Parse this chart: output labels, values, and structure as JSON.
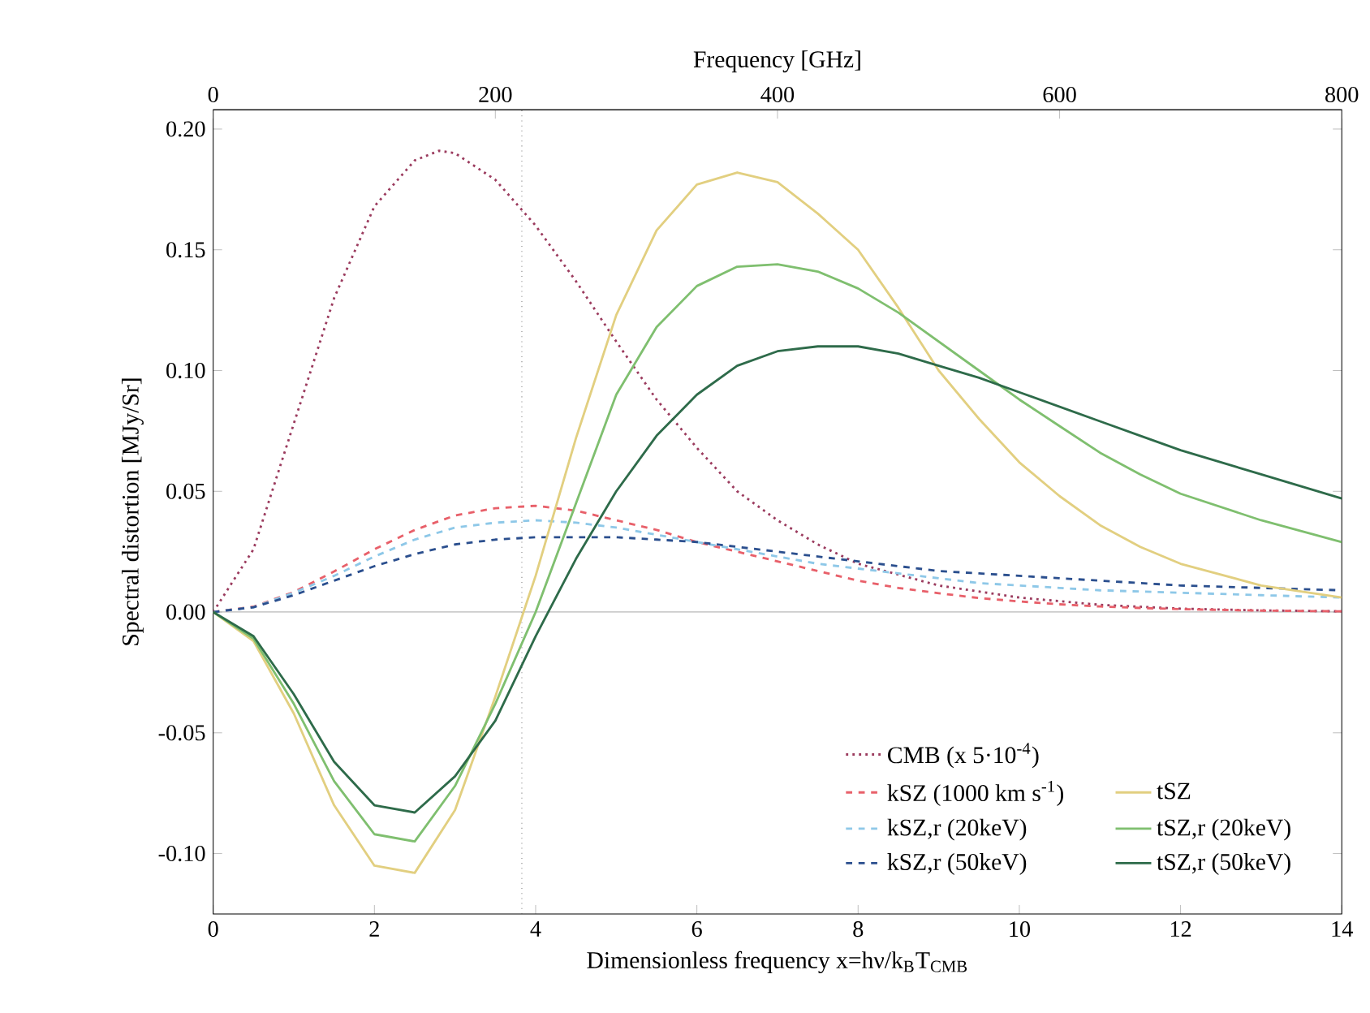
{
  "chart_data": {
    "type": "line",
    "xlabel": "Dimensionless frequency x=hν/k$_{B}$T$_{CMB}$",
    "ylabel": "Spectral distortion [MJy/Sr]",
    "x2label": "Frequency [GHz]",
    "xlim": [
      0,
      14
    ],
    "xticks": [
      0,
      2,
      4,
      6,
      8,
      10,
      12,
      14
    ],
    "x2lim": [
      0,
      800
    ],
    "x2ticks": [
      0,
      200,
      400,
      600,
      800
    ],
    "ylim": [
      -0.125,
      0.208
    ],
    "yticks": [
      {
        "value": -0.1,
        "label": "-0.10"
      },
      {
        "value": -0.05,
        "label": "-0.05"
      },
      {
        "value": 0,
        "label": "0.00"
      },
      {
        "value": 0.05,
        "label": "0.05"
      },
      {
        "value": 0.1,
        "label": "0.10"
      },
      {
        "value": 0.15,
        "label": "0.15"
      },
      {
        "value": 0.2,
        "label": "0.20"
      }
    ],
    "legend": "bottom right",
    "marker": "none",
    "grid": false,
    "ref_lines": [
      {
        "axis": "x",
        "value": 3.83,
        "color": "#555555",
        "line_style": "dotted"
      },
      {
        "axis": "y",
        "value": 0,
        "color": "#9a9a9a",
        "line_style": "solid"
      }
    ],
    "x": [
      0,
      0.5,
      1,
      1.5,
      2,
      2.5,
      3,
      3.5,
      4,
      4.5,
      5,
      5.5,
      6,
      6.5,
      7,
      7.5,
      8,
      8.5,
      9,
      9.5,
      10,
      10.5,
      11,
      11.5,
      12,
      13,
      14
    ],
    "series": [
      {
        "name": "CMB (x 5·10$^{-4}$)",
        "color": "#9b3b5e",
        "line_style": "dotted",
        "x": [
          0,
          0.5,
          1,
          1.5,
          2,
          2.5,
          2.8,
          3,
          3.5,
          4,
          4.5,
          5,
          5.5,
          6,
          6.5,
          7,
          7.5,
          8,
          9,
          10,
          11,
          12,
          13,
          14
        ],
        "values": [
          0,
          0.026,
          0.078,
          0.13,
          0.168,
          0.187,
          0.191,
          0.19,
          0.179,
          0.16,
          0.137,
          0.112,
          0.088,
          0.068,
          0.05,
          0.038,
          0.028,
          0.02,
          0.011,
          0.006,
          0.003,
          0.0014,
          0.0007,
          0.0003
        ]
      },
      {
        "name": "kSZ   (1000 km s$^{-1}$)",
        "color": "#e8606a",
        "line_style": "dashed",
        "values": [
          0,
          0.0022,
          0.0083,
          0.0168,
          0.026,
          0.034,
          0.04,
          0.043,
          0.044,
          0.042,
          0.038,
          0.034,
          0.029,
          0.025,
          0.021,
          0.017,
          0.013,
          0.01,
          0.0078,
          0.0058,
          0.0044,
          0.0032,
          0.0023,
          0.0017,
          0.0012,
          0.0006,
          0.0003
        ]
      },
      {
        "name": "kSZ,r (20keV)",
        "color": "#8ec8e8",
        "line_style": "dashed",
        "values": [
          0,
          0.002,
          0.008,
          0.015,
          0.023,
          0.03,
          0.035,
          0.037,
          0.038,
          0.037,
          0.035,
          0.032,
          0.029,
          0.026,
          0.023,
          0.02,
          0.018,
          0.016,
          0.014,
          0.012,
          0.011,
          0.01,
          0.009,
          0.0085,
          0.008,
          0.007,
          0.006
        ]
      },
      {
        "name": "kSZ,r (50keV)",
        "color": "#2b4f8e",
        "line_style": "dashed",
        "values": [
          0,
          0.002,
          0.007,
          0.013,
          0.019,
          0.024,
          0.028,
          0.03,
          0.031,
          0.031,
          0.031,
          0.03,
          0.029,
          0.027,
          0.025,
          0.023,
          0.021,
          0.019,
          0.017,
          0.016,
          0.015,
          0.014,
          0.013,
          0.012,
          0.011,
          0.01,
          0.009
        ]
      },
      {
        "name": "tSZ",
        "color": "#e2cf80",
        "line_style": "solid",
        "values": [
          0,
          -0.012,
          -0.042,
          -0.08,
          -0.105,
          -0.108,
          -0.082,
          -0.035,
          0.015,
          0.072,
          0.123,
          0.158,
          0.177,
          0.182,
          0.178,
          0.165,
          0.15,
          0.126,
          0.1,
          0.08,
          0.062,
          0.048,
          0.036,
          0.027,
          0.02,
          0.011,
          0.006
        ]
      },
      {
        "name": "tSZ,r (20keV)",
        "color": "#7fbf6f",
        "line_style": "solid",
        "values": [
          0,
          -0.011,
          -0.038,
          -0.07,
          -0.092,
          -0.095,
          -0.072,
          -0.038,
          0.0,
          0.045,
          0.09,
          0.118,
          0.135,
          0.143,
          0.144,
          0.141,
          0.134,
          0.124,
          0.112,
          0.1,
          0.088,
          0.077,
          0.066,
          0.057,
          0.049,
          0.038,
          0.029
        ]
      },
      {
        "name": "tSZ,r (50keV)",
        "color": "#2e6b4a",
        "line_style": "solid",
        "values": [
          0,
          -0.01,
          -0.034,
          -0.062,
          -0.08,
          -0.083,
          -0.068,
          -0.045,
          -0.01,
          0.022,
          0.05,
          0.073,
          0.09,
          0.102,
          0.108,
          0.11,
          0.11,
          0.107,
          0.102,
          0.097,
          0.091,
          0.085,
          0.079,
          0.073,
          0.067,
          0.057,
          0.047
        ]
      }
    ]
  }
}
